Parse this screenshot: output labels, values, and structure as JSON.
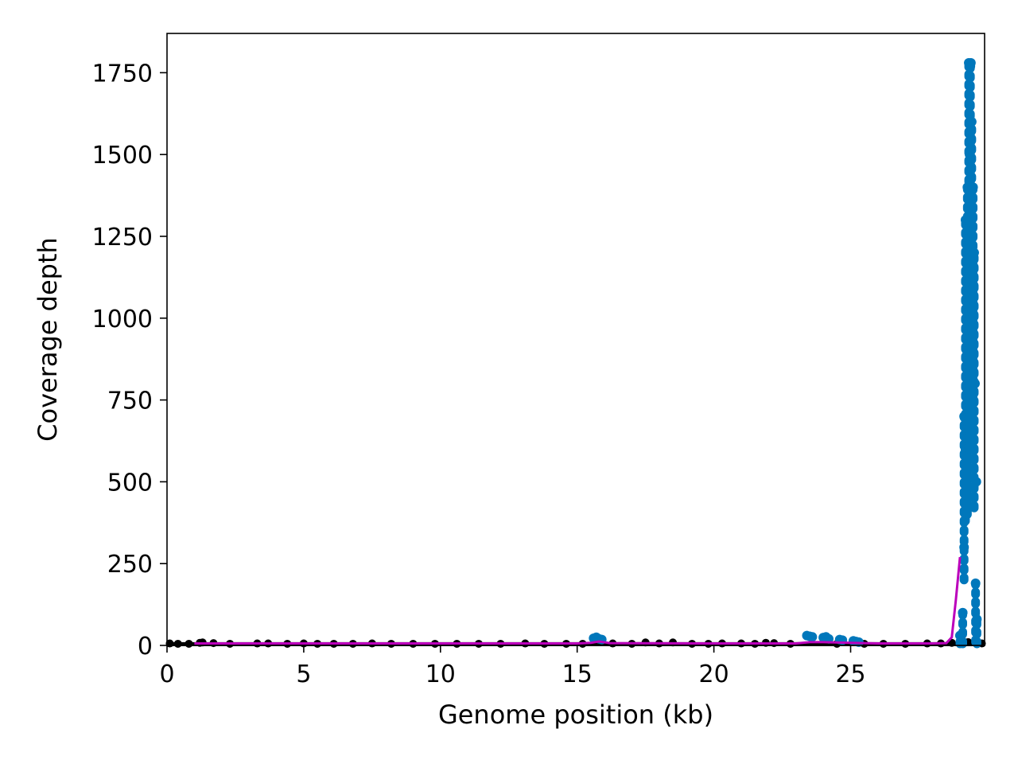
{
  "chart_data": {
    "type": "scatter",
    "title": "",
    "xlabel": "Genome position (kb)",
    "ylabel": "Coverage depth",
    "xlim": [
      0,
      29.9
    ],
    "ylim": [
      0,
      1870
    ],
    "xticks": [
      0,
      5,
      10,
      15,
      20,
      25
    ],
    "xtick_labels": [
      "0",
      "5",
      "10",
      "15",
      "20",
      "25"
    ],
    "yticks": [
      0,
      250,
      500,
      750,
      1000,
      1250,
      1500,
      1750
    ],
    "ytick_labels": [
      "0",
      "250",
      "500",
      "750",
      "1000",
      "1250",
      "1500",
      "1750"
    ],
    "grid": false,
    "legend": "none",
    "colors": {
      "high_coverage": "#0077bb",
      "low_coverage": "#000000",
      "smoothed": "#bb00bb"
    },
    "series": [
      {
        "kind": "scatter",
        "color": "#000000",
        "x": [
          0.1,
          0.4,
          0.8,
          1.2,
          1.3,
          1.7,
          2.3,
          3.3,
          3.7,
          4.4,
          5.0,
          5.5,
          6.1,
          6.8,
          7.5,
          8.2,
          9.0,
          9.8,
          10.6,
          11.4,
          12.2,
          13.1,
          13.8,
          14.6,
          15.2,
          16.3,
          17.0,
          17.5,
          18.0,
          18.5,
          19.2,
          19.8,
          20.3,
          21.0,
          21.5,
          21.9,
          22.2,
          22.8,
          24.5,
          25.5,
          26.2,
          27.0,
          27.8,
          28.3,
          28.7,
          29.0,
          29.1,
          29.3,
          29.6,
          29.8
        ],
        "y": [
          6,
          5,
          5,
          8,
          9,
          7,
          5,
          6,
          6,
          5,
          6,
          5,
          5,
          5,
          6,
          5,
          5,
          5,
          5,
          5,
          5,
          6,
          5,
          5,
          5,
          6,
          5,
          9,
          6,
          9,
          5,
          5,
          6,
          6,
          5,
          8,
          7,
          5,
          5,
          5,
          5,
          5,
          6,
          6,
          8,
          12,
          14,
          10,
          8,
          6
        ]
      },
      {
        "kind": "scatter",
        "color": "#0077bb",
        "x": [
          15.6,
          15.7,
          15.8,
          15.9,
          23.4,
          23.5,
          23.6,
          24.0,
          24.1,
          24.2,
          24.6,
          24.7,
          25.1,
          25.2,
          25.3,
          29.0,
          29.1,
          29.15,
          29.2,
          29.25,
          29.3,
          29.35,
          29.4,
          29.45,
          29.5,
          29.55,
          29.6
        ],
        "y": [
          22,
          25,
          20,
          18,
          30,
          28,
          26,
          24,
          26,
          20,
          18,
          16,
          14,
          12,
          10,
          30,
          100,
          300,
          600,
          900,
          1200,
          1500,
          1780,
          1400,
          1100,
          800,
          500
        ],
        "columns": [
          {
            "x": 29.0,
            "y_min": 5,
            "y_max": 30
          },
          {
            "x": 29.1,
            "y_min": 5,
            "y_max": 100
          },
          {
            "x": 29.15,
            "y_min": 200,
            "y_max": 700
          },
          {
            "x": 29.2,
            "y_min": 380,
            "y_max": 1300
          },
          {
            "x": 29.27,
            "y_min": 400,
            "y_max": 1400
          },
          {
            "x": 29.32,
            "y_min": 600,
            "y_max": 1780
          },
          {
            "x": 29.38,
            "y_min": 800,
            "y_max": 1770
          },
          {
            "x": 29.43,
            "y_min": 900,
            "y_max": 1600
          },
          {
            "x": 29.48,
            "y_min": 750,
            "y_max": 1400
          },
          {
            "x": 29.52,
            "y_min": 420,
            "y_max": 1200
          },
          {
            "x": 29.57,
            "y_min": 10,
            "y_max": 190
          },
          {
            "x": 29.62,
            "y_min": 5,
            "y_max": 80
          }
        ]
      },
      {
        "kind": "line",
        "color": "#bb00bb",
        "x": [
          1.0,
          5.0,
          10.0,
          15.0,
          15.5,
          15.8,
          16.2,
          20.0,
          23.0,
          23.5,
          24.0,
          25.0,
          26.0,
          28.0,
          28.5,
          28.7,
          28.85,
          29.0
        ],
        "y": [
          6,
          6,
          6,
          6,
          8,
          12,
          7,
          6,
          6,
          10,
          10,
          8,
          6,
          6,
          7,
          25,
          140,
          270
        ]
      }
    ]
  }
}
